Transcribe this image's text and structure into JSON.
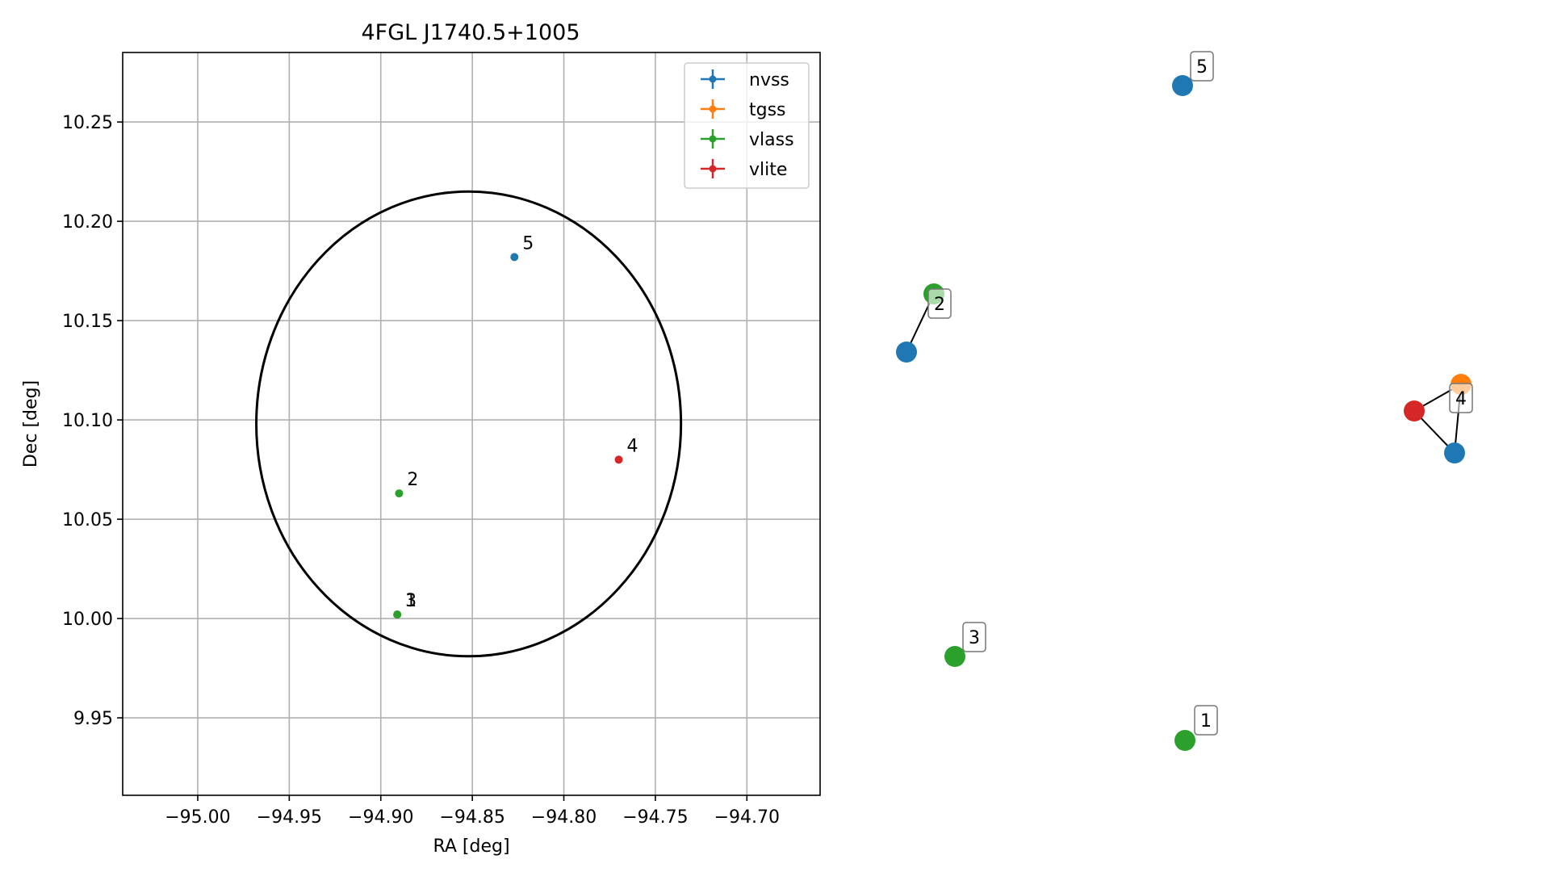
{
  "chart_data": [
    {
      "type": "scatter",
      "title": "4FGL J1740.5+1005",
      "xlabel": "RA [deg]",
      "ylabel": "Dec [deg]",
      "xlim": [
        -95.041,
        -94.66
      ],
      "ylim": [
        9.911,
        10.285
      ],
      "xticks": [
        {
          "value": -95.0,
          "label": "−95.00"
        },
        {
          "value": -94.95,
          "label": "−94.95"
        },
        {
          "value": -94.9,
          "label": "−94.90"
        },
        {
          "value": -94.85,
          "label": "−94.85"
        },
        {
          "value": -94.8,
          "label": "−94.80"
        },
        {
          "value": -94.75,
          "label": "−94.75"
        },
        {
          "value": -94.7,
          "label": "−94.70"
        }
      ],
      "yticks": [
        {
          "value": 9.95,
          "label": "9.95"
        },
        {
          "value": 10.0,
          "label": "10.00"
        },
        {
          "value": 10.05,
          "label": "10.05"
        },
        {
          "value": 10.1,
          "label": "10.10"
        },
        {
          "value": 10.15,
          "label": "10.15"
        },
        {
          "value": 10.2,
          "label": "10.20"
        },
        {
          "value": 10.25,
          "label": "10.25"
        }
      ],
      "grid": true,
      "legend_position": "top-right",
      "series": [
        {
          "name": "nvss",
          "color": "#1f77b4",
          "points": [
            {
              "x": -94.827,
              "y": 10.182,
              "label": "5"
            }
          ]
        },
        {
          "name": "tgss",
          "color": "#ff7f0e",
          "points": []
        },
        {
          "name": "vlass",
          "color": "#2ca02c",
          "points": [
            {
              "x": -94.89,
              "y": 10.063,
              "label": "2"
            },
            {
              "x": -94.891,
              "y": 10.002,
              "label": "1"
            },
            {
              "x": -94.891,
              "y": 10.002,
              "label": "3"
            }
          ]
        },
        {
          "name": "vlite",
          "color": "#d62728",
          "points": [
            {
              "x": -94.77,
              "y": 10.08,
              "label": "4"
            }
          ]
        }
      ],
      "error_ellipse": {
        "center": [
          -94.852,
          10.098
        ],
        "semi_axis_x_deg": 0.116,
        "semi_axis_y_deg": 0.117,
        "color": "#000000"
      }
    },
    {
      "type": "network",
      "nodes": [
        {
          "id": "n5",
          "group": "nvss",
          "color": "#1f77b4",
          "label": "5"
        },
        {
          "id": "v2",
          "group": "vlass",
          "color": "#2ca02c",
          "label": "2"
        },
        {
          "id": "n2",
          "group": "nvss",
          "color": "#1f77b4",
          "label": ""
        },
        {
          "id": "t4",
          "group": "tgss",
          "color": "#ff7f0e",
          "label": ""
        },
        {
          "id": "r4",
          "group": "vlite",
          "color": "#d62728",
          "label": ""
        },
        {
          "id": "n4",
          "group": "nvss",
          "color": "#1f77b4",
          "label": "4"
        },
        {
          "id": "v3",
          "group": "vlass",
          "color": "#2ca02c",
          "label": "3"
        },
        {
          "id": "v1",
          "group": "vlass",
          "color": "#2ca02c",
          "label": "1"
        }
      ],
      "edges": [
        [
          "v2",
          "n2"
        ],
        [
          "r4",
          "t4"
        ],
        [
          "r4",
          "n4"
        ],
        [
          "t4",
          "n4"
        ]
      ]
    }
  ]
}
